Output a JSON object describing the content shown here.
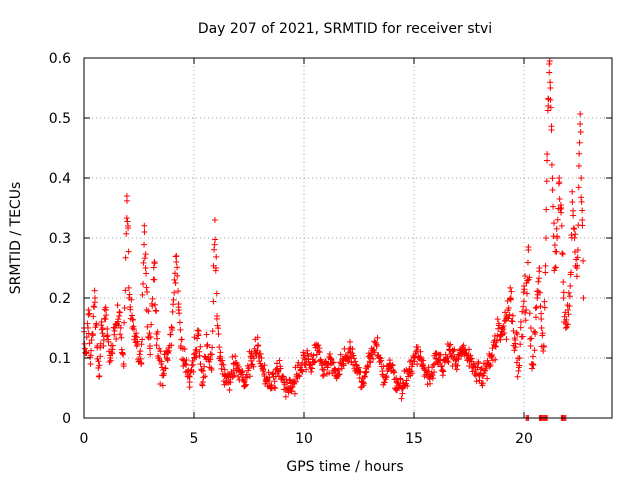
{
  "chart_data": {
    "type": "scatter",
    "title": "Day 207 of 2021, SRMTID for receiver stvi",
    "xlabel": "GPS time / hours",
    "ylabel": "SRMTID / TECUs",
    "xlim": [
      0,
      24
    ],
    "ylim": [
      0,
      0.6
    ],
    "xticks": [
      0,
      5,
      10,
      15,
      20
    ],
    "xtick_labels": [
      "0",
      "5",
      "10",
      "15",
      "20"
    ],
    "yticks": [
      0,
      0.1,
      0.2,
      0.3,
      0.4,
      0.5,
      0.6
    ],
    "ytick_labels": [
      "0",
      "0.1",
      "0.2",
      "0.3",
      "0.4",
      "0.5",
      "0.6"
    ],
    "grid": true,
    "marker": "+",
    "series": [
      {
        "name": "SRMTID",
        "color": "#ff0000",
        "x": [
          0.0,
          0.1,
          0.2,
          0.3,
          0.4,
          0.5,
          0.6,
          0.7,
          0.8,
          0.9,
          1.0,
          1.2,
          1.4,
          1.6,
          1.8,
          1.95,
          2.0,
          2.05,
          2.2,
          2.4,
          2.6,
          2.75,
          2.8,
          2.85,
          3.0,
          3.2,
          3.3,
          3.4,
          3.6,
          3.8,
          4.0,
          4.2,
          4.3,
          4.4,
          4.6,
          4.8,
          5.0,
          5.2,
          5.4,
          5.6,
          5.8,
          5.95,
          6.0,
          6.05,
          6.2,
          6.4,
          6.6,
          6.8,
          7.0,
          7.3,
          7.6,
          7.9,
          8.2,
          8.5,
          8.8,
          9.1,
          9.4,
          9.7,
          10.0,
          10.3,
          10.6,
          10.9,
          11.2,
          11.5,
          11.8,
          12.1,
          12.4,
          12.7,
          13.0,
          13.3,
          13.6,
          13.9,
          14.2,
          14.5,
          14.8,
          15.1,
          15.4,
          15.7,
          16.0,
          16.3,
          16.6,
          16.9,
          17.2,
          17.5,
          17.8,
          18.1,
          18.4,
          18.7,
          19.0,
          19.2,
          19.4,
          19.6,
          19.8,
          20.0,
          20.1,
          20.2,
          20.3,
          20.4,
          20.5,
          20.6,
          20.7,
          20.8,
          20.9,
          21.0,
          21.05,
          21.1,
          21.15,
          21.2,
          21.25,
          21.3,
          21.4,
          21.5,
          21.6,
          21.7,
          21.8,
          21.9,
          22.0,
          22.1,
          22.2,
          22.3,
          22.4,
          22.45,
          22.5,
          22.55,
          22.6,
          22.65,
          22.7
        ],
        "y": [
          0.15,
          0.11,
          0.18,
          0.09,
          0.14,
          0.2,
          0.12,
          0.07,
          0.16,
          0.13,
          0.18,
          0.1,
          0.15,
          0.17,
          0.09,
          0.37,
          0.32,
          0.2,
          0.15,
          0.12,
          0.09,
          0.31,
          0.25,
          0.18,
          0.12,
          0.26,
          0.14,
          0.1,
          0.08,
          0.11,
          0.15,
          0.27,
          0.19,
          0.12,
          0.09,
          0.06,
          0.1,
          0.14,
          0.06,
          0.12,
          0.08,
          0.33,
          0.25,
          0.17,
          0.1,
          0.07,
          0.06,
          0.09,
          0.08,
          0.06,
          0.1,
          0.12,
          0.07,
          0.05,
          0.08,
          0.06,
          0.05,
          0.07,
          0.1,
          0.09,
          0.12,
          0.08,
          0.1,
          0.07,
          0.09,
          0.11,
          0.08,
          0.06,
          0.1,
          0.12,
          0.07,
          0.09,
          0.06,
          0.05,
          0.08,
          0.11,
          0.09,
          0.07,
          0.1,
          0.08,
          0.12,
          0.09,
          0.11,
          0.1,
          0.08,
          0.07,
          0.09,
          0.12,
          0.15,
          0.17,
          0.2,
          0.13,
          0.1,
          0.22,
          0.18,
          0.28,
          0.12,
          0.09,
          0.14,
          0.2,
          0.25,
          0.15,
          0.12,
          0.3,
          0.44,
          0.52,
          0.59,
          0.55,
          0.48,
          0.38,
          0.25,
          0.3,
          0.4,
          0.35,
          0.2,
          0.15,
          0.18,
          0.22,
          0.36,
          0.3,
          0.25,
          0.28,
          0.42,
          0.49,
          0.4,
          0.33,
          0.2
        ]
      }
    ],
    "zero_points_x": [
      20.1,
      20.15,
      20.2,
      20.7,
      20.75,
      20.8,
      20.85,
      20.9,
      20.95,
      21.0,
      21.05,
      21.7,
      21.75,
      21.8,
      21.85,
      21.9
    ]
  }
}
